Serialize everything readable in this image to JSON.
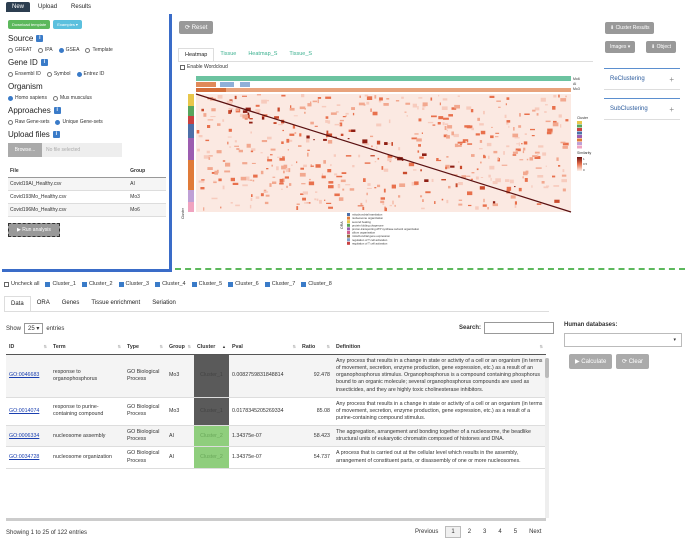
{
  "nav": {
    "items": [
      "New",
      "Upload",
      "Results"
    ],
    "active": 0
  },
  "left": {
    "download_template": "Download template",
    "examples": "Examples ▾",
    "source_title": "Source",
    "source_options": [
      "GREAT",
      "IPA",
      "GSEA",
      "Template"
    ],
    "source_selected": 2,
    "geneid_title": "Gene ID",
    "geneid_options": [
      "Ensembl ID",
      "Symbol",
      "Entrez ID"
    ],
    "geneid_selected": 2,
    "organism_title": "Organism",
    "organism_options": [
      "Homo sapiens",
      "Mus musculus"
    ],
    "organism_selected": 0,
    "approaches_title": "Approaches",
    "approaches_options": [
      "Raw Gene-sets",
      "Unique Gene-sets"
    ],
    "approaches_selected": 1,
    "upload_title": "Upload files",
    "browse": "Browse...",
    "no_file": "No file selected",
    "file_table": {
      "headers": [
        "File",
        "Group"
      ],
      "rows": [
        [
          "Covid19AI_Healthy.csv",
          "AI"
        ],
        [
          "Covid193Mo_Healthy.csv",
          "Mo3"
        ],
        [
          "Covid196Mo_Healthy.csv",
          "Mo6"
        ]
      ]
    },
    "run": "▶ Run analysis"
  },
  "heatmap_panel": {
    "reset": "⟳ Reset",
    "tabs": [
      "Heatmap",
      "Tissue",
      "Heatmap_S",
      "Tissue_S"
    ],
    "active_tab": 0,
    "wordcloud": "Enable Wordcloud",
    "top_bar_labels": [
      "Mo6",
      "AI",
      "Mo3"
    ],
    "legend_cluster_title": "Cluster",
    "legend_similarity_title": "Similarity",
    "legend_similarity_values": [
      "1",
      "0.5",
      "0"
    ],
    "left_axis_label": "Cluster",
    "ora_label": "ORA",
    "ora_terms": [
      "mitochondrial translation",
      "nucleosome organization",
      "second healing",
      "protein folding chaperone",
      "proton-transporting ATP synthase subunit organization",
      "cilium organization",
      "mitochondrial gene expression",
      "regulation of T cell activation",
      "regulation of T cell activation"
    ],
    "ora_colors": [
      "#4d6fa8",
      "#e07b39",
      "#e8c64a",
      "#58a55c",
      "#9c5db0",
      "#d35d8b",
      "#8f6b3d",
      "#7c9cc9",
      "#c94040"
    ],
    "cluster_colors": [
      "#e8c64a",
      "#58a55c",
      "#c94040",
      "#4d6fa8",
      "#9c5db0",
      "#e07b39",
      "#bfa0d6",
      "#f0a3c0"
    ]
  },
  "right": {
    "cluster_results": "⬇ Cluster Results",
    "images": "Images ▾",
    "object": "⬇ Object",
    "reclustering": "ReClustering",
    "subclustering": "SubClustering",
    "plus": "+"
  },
  "clusters": {
    "uncheck_all": "Uncheck all",
    "items": [
      "Cluster_1",
      "Cluster_2",
      "Cluster_3",
      "Cluster_4",
      "Cluster_5",
      "Cluster_6",
      "Cluster_7",
      "Cluster_8"
    ]
  },
  "bottom_tabs": {
    "items": [
      "Data",
      "ORA",
      "Genes",
      "Tissue enrichment",
      "Seriation"
    ],
    "active": 0
  },
  "table": {
    "show_prefix": "Show",
    "show_value": "25 ▾",
    "show_suffix": "entries",
    "search_label": "Search:",
    "headers": [
      "ID",
      "Term",
      "Type",
      "Group",
      "Cluster",
      "Pval",
      "Ratio",
      "Definition"
    ],
    "sort_arrows": [
      "⇅",
      "⇅",
      "⇅",
      "⇅",
      "▲",
      "⇅",
      "⇅",
      "⇅"
    ],
    "rows": [
      {
        "id": "GO:0046683",
        "term": "response to organophosphorus",
        "type": "GO Biological Process",
        "group": "Mo3",
        "cluster": "Cluster_1",
        "cluster_color": "#5a5a5a",
        "pval": "0.0082759831848814",
        "ratio": "92.478",
        "definition": "Any process that results in a change in state or activity of a cell or an organism (in terms of movement, secretion, enzyme production, gene expression, etc.) as a result of an organophosphorus stimulus. Organophosphorus is a compound containing phosphorus bound to an organic molecule; several organophosphorus compounds are used as insecticides, and they are highly toxic cholinesterase inhibitors."
      },
      {
        "id": "GO:0014074",
        "term": "response to purine-containing compound",
        "type": "GO Biological Process",
        "group": "Mo3",
        "cluster": "Cluster_1",
        "cluster_color": "#5a5a5a",
        "pval": "0.0178345205269334",
        "ratio": "85.08",
        "definition": "Any process that results in a change in state or activity of a cell or an organism (in terms of movement, secretion, enzyme production, gene expression, etc.) as a result of a purine-containing compound stimulus."
      },
      {
        "id": "GO:0006334",
        "term": "nucleosome assembly",
        "type": "GO Biological Process",
        "group": "AI",
        "cluster": "Cluster_2",
        "cluster_color": "#8fce7d",
        "pval": "1.34375e-07",
        "ratio": "58.423",
        "definition": "The aggregation, arrangement and bonding together of a nucleosome, the beadlike structural units of eukaryotic chromatin composed of histones and DNA."
      },
      {
        "id": "GO:0034728",
        "term": "nucleosome organization",
        "type": "GO Biological Process",
        "group": "AI",
        "cluster": "Cluster_2",
        "cluster_color": "#8fce7d",
        "pval": "1.34375e-07",
        "ratio": "54.737",
        "definition": "A process that is carried out at the cellular level which results in the assembly, arrangement of constituent parts, or disassembly of one or more nucleosomes."
      }
    ],
    "info": "Showing 1 to 25 of 122 entries",
    "pager": [
      "Previous",
      "1",
      "2",
      "3",
      "4",
      "5",
      "Next"
    ],
    "pager_active": 1
  },
  "human_db": {
    "label": "Human databases:",
    "caret": "▾",
    "calculate": "▶ Calculate",
    "clear": "⟳ Clear"
  }
}
